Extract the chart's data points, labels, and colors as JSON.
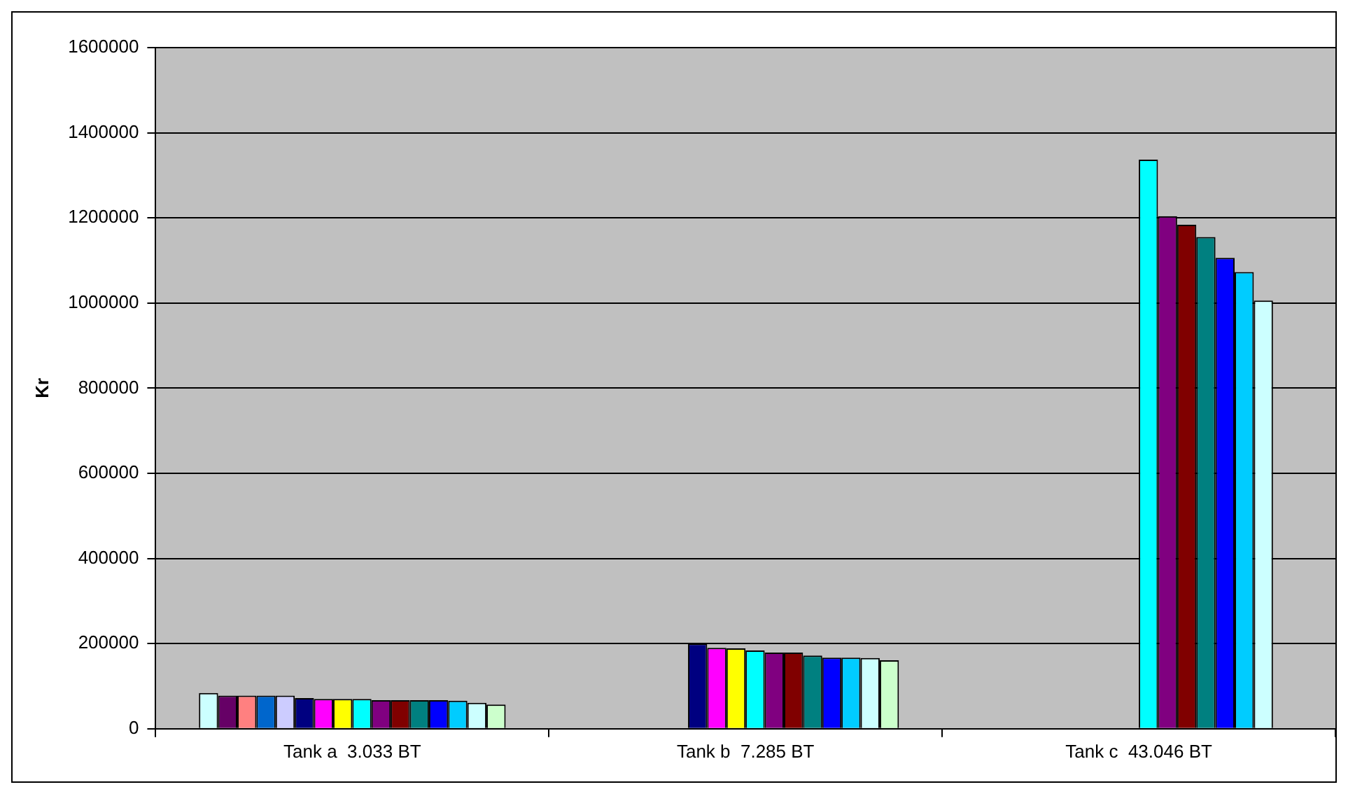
{
  "chart_data": {
    "type": "bar",
    "ylabel": "Kr",
    "categories": [
      "Tank a  3.033 BT",
      "Tank b  7.285 BT",
      "Tank c  43.046 BT"
    ],
    "series": [
      {
        "color": "#ccffff",
        "values": [
          84000,
          null,
          null
        ]
      },
      {
        "color": "#660066",
        "values": [
          78000,
          null,
          null
        ]
      },
      {
        "color": "#ff8080",
        "values": [
          78000,
          null,
          null
        ]
      },
      {
        "color": "#0066cc",
        "values": [
          78000,
          null,
          null
        ]
      },
      {
        "color": "#ccccff",
        "values": [
          78000,
          null,
          null
        ]
      },
      {
        "color": "#000080",
        "values": [
          72000,
          200000,
          null
        ]
      },
      {
        "color": "#ff00ff",
        "values": [
          70000,
          190000,
          null
        ]
      },
      {
        "color": "#ffff00",
        "values": [
          70000,
          189000,
          null
        ]
      },
      {
        "color": "#00ffff",
        "values": [
          70000,
          184000,
          1337000
        ]
      },
      {
        "color": "#800080",
        "values": [
          67000,
          179000,
          1204000
        ]
      },
      {
        "color": "#800000",
        "values": [
          67000,
          179000,
          1184000
        ]
      },
      {
        "color": "#008080",
        "values": [
          67000,
          172000,
          1155000
        ]
      },
      {
        "color": "#0000ff",
        "values": [
          67000,
          167000,
          1106000
        ]
      },
      {
        "color": "#00ccff",
        "values": [
          66000,
          167000,
          1073000
        ]
      },
      {
        "color": "#ccffff",
        "values": [
          61000,
          166000,
          1006000
        ]
      },
      {
        "color": "#ccffcc",
        "values": [
          57000,
          161000,
          null
        ]
      }
    ],
    "ylim": [
      0,
      1600000
    ],
    "yticks": [
      0,
      200000,
      400000,
      600000,
      800000,
      1000000,
      1200000,
      1400000,
      1600000
    ],
    "grid": "y"
  }
}
